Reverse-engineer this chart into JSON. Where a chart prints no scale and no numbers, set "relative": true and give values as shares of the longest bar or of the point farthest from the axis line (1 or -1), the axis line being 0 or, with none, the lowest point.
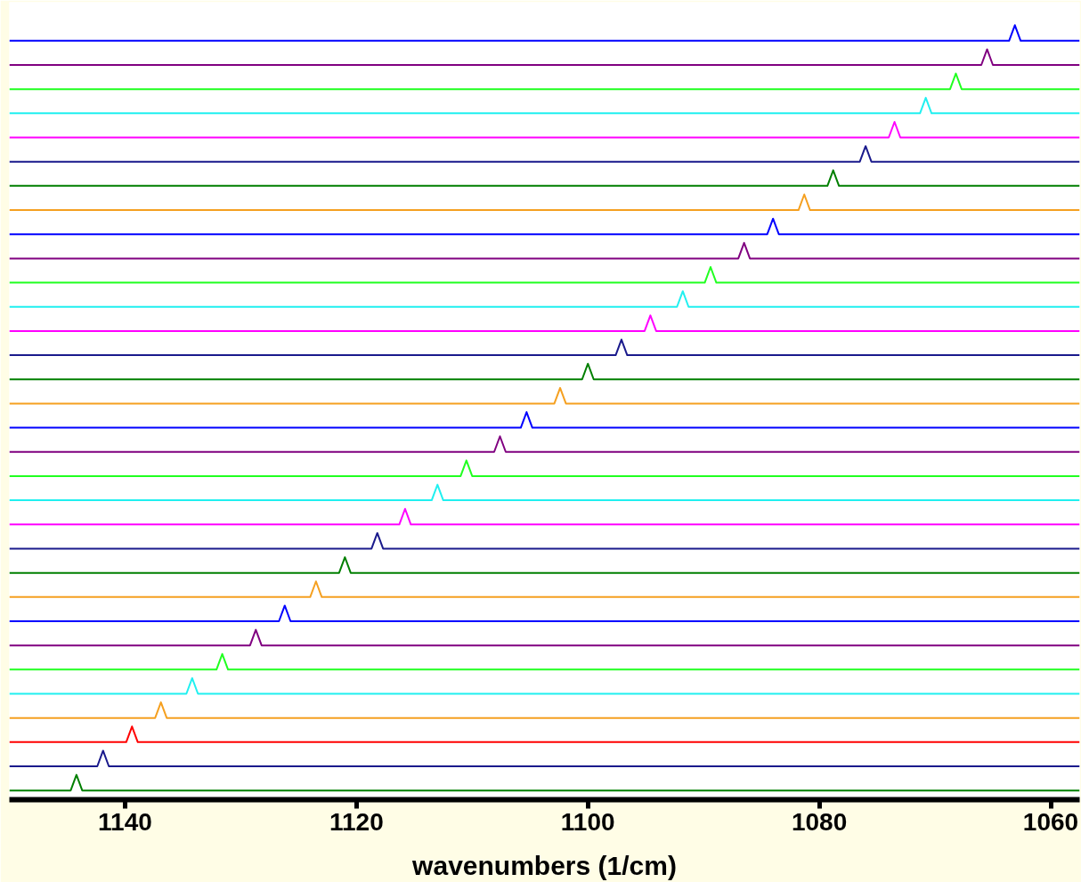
{
  "chart_data": {
    "type": "line",
    "relative": true,
    "xlabel": "wavenumbers (1/cm)",
    "xlim": [
      1150,
      1057.5
    ],
    "xticks": [
      1140,
      1120,
      1100,
      1080,
      1060
    ],
    "grid": false,
    "marker": "none",
    "line_style": "solid",
    "tick_labels": "x",
    "series": [
      {
        "color": "#007f00",
        "x": [
          1150,
          1144.7,
          1144.2,
          1143.7,
          1057.5
        ],
        "values": [
          0,
          0,
          0.0204,
          0,
          0
        ]
      },
      {
        "color": "#1a1a8c",
        "x": [
          1150,
          1142.4,
          1141.9,
          1141.4,
          1057.5
        ],
        "values": [
          0.0316,
          0.0316,
          0.052,
          0.0316,
          0.0316
        ]
      },
      {
        "color": "#ff0000",
        "x": [
          1150,
          1139.9,
          1139.4,
          1138.9,
          1057.5
        ],
        "values": [
          0.0632,
          0.0632,
          0.0836,
          0.0632,
          0.0632
        ]
      },
      {
        "color": "#f5a020",
        "x": [
          1150,
          1137.4,
          1136.9,
          1136.4,
          1057.5
        ],
        "values": [
          0.0948,
          0.0948,
          0.1152,
          0.0948,
          0.0948
        ]
      },
      {
        "color": "#20f0f0",
        "x": [
          1150,
          1134.7,
          1134.2,
          1133.7,
          1057.5
        ],
        "values": [
          0.1264,
          0.1264,
          0.1468,
          0.1264,
          0.1264
        ]
      },
      {
        "color": "#20ff20",
        "x": [
          1150,
          1132.1,
          1131.6,
          1131.1,
          1057.5
        ],
        "values": [
          0.158,
          0.158,
          0.1784,
          0.158,
          0.158
        ]
      },
      {
        "color": "#800080",
        "x": [
          1150,
          1129.2,
          1128.7,
          1128.2,
          1057.5
        ],
        "values": [
          0.1896,
          0.1896,
          0.21,
          0.1896,
          0.1896
        ]
      },
      {
        "color": "#0000ff",
        "x": [
          1150,
          1126.7,
          1126.2,
          1125.7,
          1057.5
        ],
        "values": [
          0.2212,
          0.2212,
          0.2416,
          0.2212,
          0.2212
        ]
      },
      {
        "color": "#f5a020",
        "x": [
          1150,
          1124.0,
          1123.5,
          1123.0,
          1057.5
        ],
        "values": [
          0.2528,
          0.2528,
          0.2732,
          0.2528,
          0.2528
        ]
      },
      {
        "color": "#007f00",
        "x": [
          1150,
          1121.5,
          1121.0,
          1120.5,
          1057.5
        ],
        "values": [
          0.2844,
          0.2844,
          0.3048,
          0.2844,
          0.2844
        ]
      },
      {
        "color": "#1a1a8c",
        "x": [
          1150,
          1118.7,
          1118.2,
          1117.7,
          1057.5
        ],
        "values": [
          0.316,
          0.316,
          0.3364,
          0.316,
          0.316
        ]
      },
      {
        "color": "#ff00ff",
        "x": [
          1150,
          1116.3,
          1115.8,
          1115.3,
          1057.5
        ],
        "values": [
          0.3476,
          0.3476,
          0.368,
          0.3476,
          0.3476
        ]
      },
      {
        "color": "#20f0f0",
        "x": [
          1150,
          1113.5,
          1113.0,
          1112.5,
          1057.5
        ],
        "values": [
          0.3792,
          0.3792,
          0.3996,
          0.3792,
          0.3792
        ]
      },
      {
        "color": "#20ff20",
        "x": [
          1150,
          1111.0,
          1110.5,
          1110.0,
          1057.5
        ],
        "values": [
          0.4108,
          0.4108,
          0.4312,
          0.4108,
          0.4108
        ]
      },
      {
        "color": "#800080",
        "x": [
          1150,
          1108.1,
          1107.6,
          1107.1,
          1057.5
        ],
        "values": [
          0.4424,
          0.4424,
          0.4628,
          0.4424,
          0.4424
        ]
      },
      {
        "color": "#0000ff",
        "x": [
          1150,
          1105.8,
          1105.3,
          1104.8,
          1057.5
        ],
        "values": [
          0.474,
          0.474,
          0.4944,
          0.474,
          0.474
        ]
      },
      {
        "color": "#f5a020",
        "x": [
          1150,
          1102.9,
          1102.4,
          1101.9,
          1057.5
        ],
        "values": [
          0.5056,
          0.5056,
          0.526,
          0.5056,
          0.5056
        ]
      },
      {
        "color": "#007f00",
        "x": [
          1150,
          1100.5,
          1100.0,
          1099.5,
          1057.5
        ],
        "values": [
          0.5372,
          0.5372,
          0.5576,
          0.5372,
          0.5372
        ]
      },
      {
        "color": "#1a1a8c",
        "x": [
          1150,
          1097.6,
          1097.1,
          1096.6,
          1057.5
        ],
        "values": [
          0.5688,
          0.5688,
          0.5892,
          0.5688,
          0.5688
        ]
      },
      {
        "color": "#ff00ff",
        "x": [
          1150,
          1095.1,
          1094.6,
          1094.1,
          1057.5
        ],
        "values": [
          0.6004,
          0.6004,
          0.6208,
          0.6004,
          0.6004
        ]
      },
      {
        "color": "#20f0f0",
        "x": [
          1150,
          1092.3,
          1091.8,
          1091.3,
          1057.5
        ],
        "values": [
          0.632,
          0.632,
          0.6524,
          0.632,
          0.632
        ]
      },
      {
        "color": "#20ff20",
        "x": [
          1150,
          1089.9,
          1089.4,
          1088.9,
          1057.5
        ],
        "values": [
          0.6636,
          0.6636,
          0.684,
          0.6636,
          0.6636
        ]
      },
      {
        "color": "#800080",
        "x": [
          1150,
          1087.0,
          1086.5,
          1086.0,
          1057.5
        ],
        "values": [
          0.6952,
          0.6952,
          0.7156,
          0.6952,
          0.6952
        ]
      },
      {
        "color": "#0000ff",
        "x": [
          1150,
          1084.5,
          1084.0,
          1083.5,
          1057.5
        ],
        "values": [
          0.7268,
          0.7268,
          0.7472,
          0.7268,
          0.7268
        ]
      },
      {
        "color": "#f5a020",
        "x": [
          1150,
          1081.8,
          1081.3,
          1080.8,
          1057.5
        ],
        "values": [
          0.7584,
          0.7584,
          0.7788,
          0.7584,
          0.7584
        ]
      },
      {
        "color": "#007f00",
        "x": [
          1150,
          1079.3,
          1078.8,
          1078.3,
          1057.5
        ],
        "values": [
          0.79,
          0.79,
          0.8104,
          0.79,
          0.79
        ]
      },
      {
        "color": "#1a1a8c",
        "x": [
          1150,
          1076.5,
          1076.0,
          1075.5,
          1057.5
        ],
        "values": [
          0.8216,
          0.8216,
          0.842,
          0.8216,
          0.8216
        ]
      },
      {
        "color": "#ff00ff",
        "x": [
          1150,
          1074.0,
          1073.5,
          1073.0,
          1057.5
        ],
        "values": [
          0.8532,
          0.8532,
          0.8736,
          0.8532,
          0.8532
        ]
      },
      {
        "color": "#20f0f0",
        "x": [
          1150,
          1071.3,
          1070.8,
          1070.3,
          1057.5
        ],
        "values": [
          0.8848,
          0.8848,
          0.9052,
          0.8848,
          0.8848
        ]
      },
      {
        "color": "#20ff20",
        "x": [
          1150,
          1068.7,
          1068.2,
          1067.7,
          1057.5
        ],
        "values": [
          0.9164,
          0.9164,
          0.9368,
          0.9164,
          0.9164
        ]
      },
      {
        "color": "#800080",
        "x": [
          1150,
          1066.0,
          1065.5,
          1065.0,
          1057.5
        ],
        "values": [
          0.948,
          0.948,
          0.9684,
          0.948,
          0.948
        ]
      },
      {
        "color": "#0000ff",
        "x": [
          1150,
          1063.6,
          1063.1,
          1062.6,
          1057.5
        ],
        "values": [
          0.9796,
          0.9796,
          1.0,
          0.9796,
          0.9796
        ]
      }
    ]
  }
}
